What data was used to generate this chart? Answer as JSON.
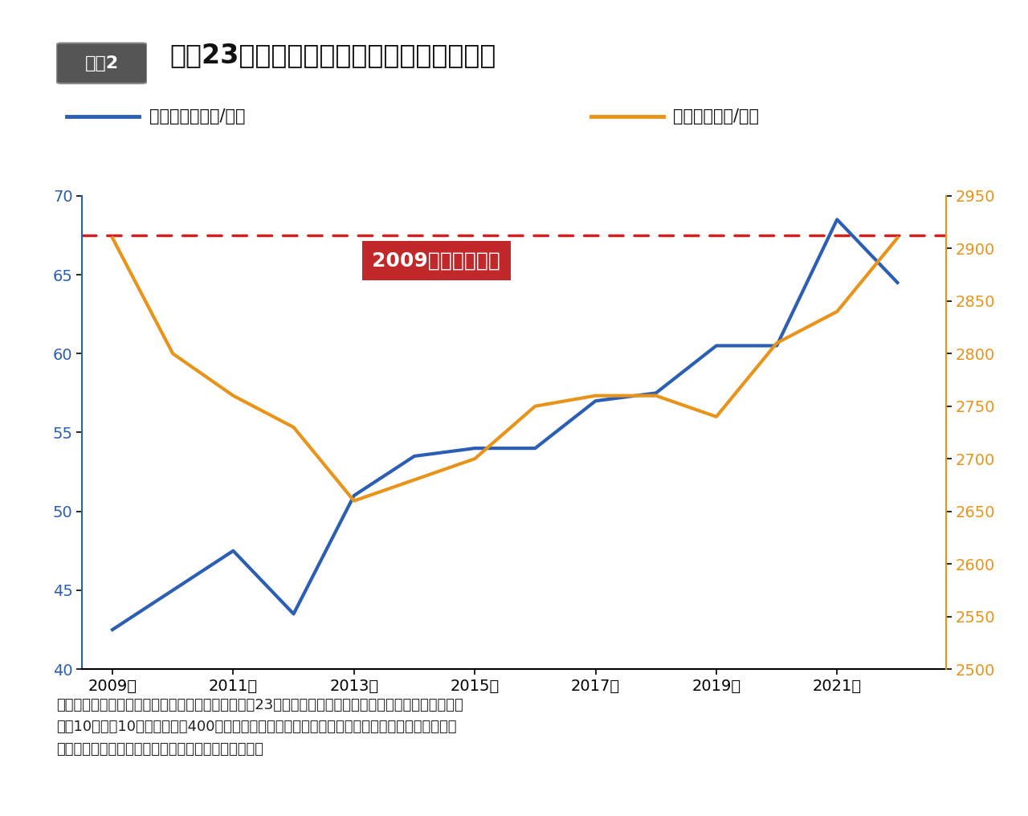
{
  "title": "東京23区一棟アパート売買価格と賃料推移",
  "label_box": "図表2",
  "years": [
    2009,
    2010,
    2011,
    2012,
    2013,
    2014,
    2015,
    2016,
    2017,
    2018,
    2019,
    2020,
    2021,
    2022
  ],
  "sale_price": [
    42.5,
    45.0,
    47.5,
    43.5,
    51.0,
    53.5,
    54.0,
    54.0,
    57.0,
    57.5,
    60.5,
    60.5,
    68.5,
    64.5
  ],
  "rent_price": [
    2910,
    2800,
    2760,
    2730,
    2660,
    2680,
    2700,
    2750,
    2760,
    2760,
    2740,
    2810,
    2840,
    2910
  ],
  "sale_color": "#2b5fb3",
  "rent_color": "#e8941a",
  "dashed_line_y_left": 67.5,
  "dashed_line_color": "#d42020",
  "annotation_text": "2009年ごろの水準",
  "annotation_bg": "#c0282a",
  "annotation_text_color": "#ffffff",
  "ylim_left": [
    40,
    70
  ],
  "ylim_right": [
    2500,
    2950
  ],
  "yticks_left": [
    40,
    45,
    50,
    55,
    60,
    65,
    70
  ],
  "yticks_right": [
    2500,
    2550,
    2600,
    2650,
    2700,
    2750,
    2800,
    2850,
    2900,
    2950
  ],
  "xtick_labels": [
    "2009年",
    "2011年",
    "2013年",
    "2015年",
    "2017年",
    "2019年",
    "2021年"
  ],
  "xtick_positions": [
    2009,
    2011,
    2013,
    2015,
    2017,
    2019,
    2021
  ],
  "legend_sale": "売買単価（万円/㎡）",
  "legend_rent": "賃料単価（円/㎡）",
  "footnote": "（公益財団法人東日本不動産流通機構に登録された23区一棟アパートの成約データより、最寄り駅より\n徒歩10分、築10年、延床面積400㎡の一棟アパート各年の平均成約価格を筆者推定。賃料推移は\n「首都圏賃貸居住用物件の取引動向」より筆者作成）",
  "bg_color": "#ffffff",
  "line_width": 3.0,
  "font_size_title": 24,
  "font_size_label_box": 16,
  "font_size_tick": 14,
  "font_size_legend": 15,
  "font_size_annotation": 18,
  "font_size_footnote": 13
}
